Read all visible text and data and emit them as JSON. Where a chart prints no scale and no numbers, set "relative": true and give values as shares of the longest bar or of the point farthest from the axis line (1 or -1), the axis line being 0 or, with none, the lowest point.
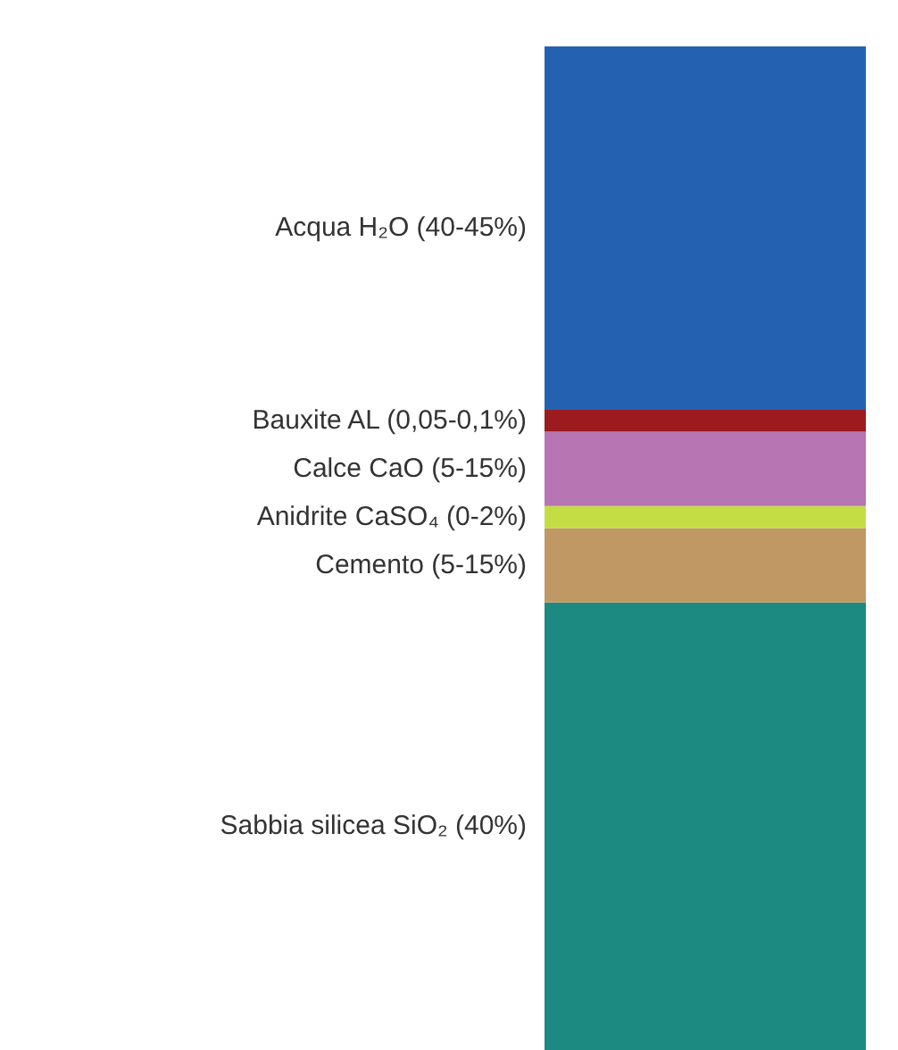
{
  "chart_data": {
    "type": "bar",
    "stacked": true,
    "relative": true,
    "categories": [
      null
    ],
    "series": [
      {
        "name": "Sabbia silicea SiO₂ (40%)",
        "color": "#1d8a82",
        "values": [
          0.446
        ]
      },
      {
        "name": "Cemento (5-15%)",
        "color": "#c09863",
        "values": [
          0.074
        ]
      },
      {
        "name": "Anidrite CaSO₄ (0-2%)",
        "color": "#c5dd45",
        "values": [
          0.022
        ]
      },
      {
        "name": "Calce CaO (5-15%)",
        "color": "#b775b3",
        "values": [
          0.074
        ]
      },
      {
        "name": "Bauxite AL (0,05-0,1%)",
        "color": "#9b1b1f",
        "values": [
          0.022
        ]
      },
      {
        "name": "Acqua H₂O (40-45%)",
        "color": "#2461b0",
        "values": [
          0.362
        ]
      }
    ]
  }
}
